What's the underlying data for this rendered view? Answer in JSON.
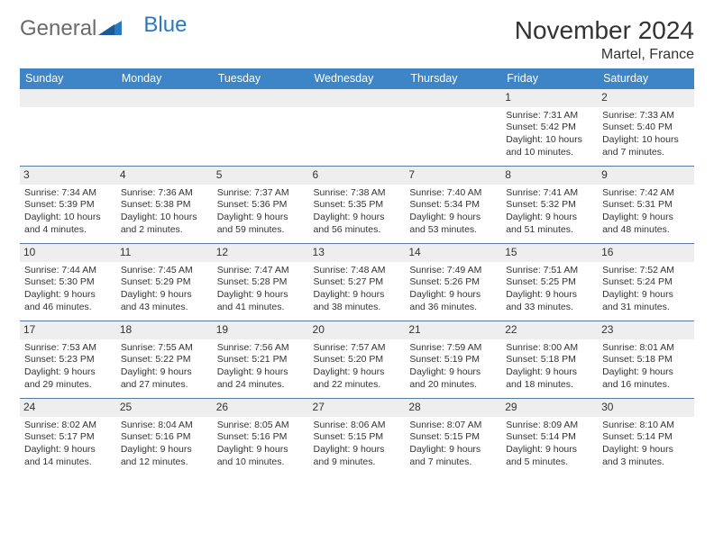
{
  "logo": {
    "text1": "General",
    "text2": "Blue"
  },
  "title": "November 2024",
  "location": "Martel, France",
  "colors": {
    "header_bg": "#3d85c6",
    "header_text": "#ffffff",
    "daynum_bg": "#eeeeee",
    "cell_border": "#5a7a9c",
    "logo_gray": "#6b6b6b",
    "logo_blue": "#2a78c2"
  },
  "day_headers": [
    "Sunday",
    "Monday",
    "Tuesday",
    "Wednesday",
    "Thursday",
    "Friday",
    "Saturday"
  ],
  "weeks": [
    [
      {
        "n": "",
        "lines": []
      },
      {
        "n": "",
        "lines": []
      },
      {
        "n": "",
        "lines": []
      },
      {
        "n": "",
        "lines": []
      },
      {
        "n": "",
        "lines": []
      },
      {
        "n": "1",
        "lines": [
          "Sunrise: 7:31 AM",
          "Sunset: 5:42 PM",
          "Daylight: 10 hours and 10 minutes."
        ]
      },
      {
        "n": "2",
        "lines": [
          "Sunrise: 7:33 AM",
          "Sunset: 5:40 PM",
          "Daylight: 10 hours and 7 minutes."
        ]
      }
    ],
    [
      {
        "n": "3",
        "lines": [
          "Sunrise: 7:34 AM",
          "Sunset: 5:39 PM",
          "Daylight: 10 hours and 4 minutes."
        ]
      },
      {
        "n": "4",
        "lines": [
          "Sunrise: 7:36 AM",
          "Sunset: 5:38 PM",
          "Daylight: 10 hours and 2 minutes."
        ]
      },
      {
        "n": "5",
        "lines": [
          "Sunrise: 7:37 AM",
          "Sunset: 5:36 PM",
          "Daylight: 9 hours and 59 minutes."
        ]
      },
      {
        "n": "6",
        "lines": [
          "Sunrise: 7:38 AM",
          "Sunset: 5:35 PM",
          "Daylight: 9 hours and 56 minutes."
        ]
      },
      {
        "n": "7",
        "lines": [
          "Sunrise: 7:40 AM",
          "Sunset: 5:34 PM",
          "Daylight: 9 hours and 53 minutes."
        ]
      },
      {
        "n": "8",
        "lines": [
          "Sunrise: 7:41 AM",
          "Sunset: 5:32 PM",
          "Daylight: 9 hours and 51 minutes."
        ]
      },
      {
        "n": "9",
        "lines": [
          "Sunrise: 7:42 AM",
          "Sunset: 5:31 PM",
          "Daylight: 9 hours and 48 minutes."
        ]
      }
    ],
    [
      {
        "n": "10",
        "lines": [
          "Sunrise: 7:44 AM",
          "Sunset: 5:30 PM",
          "Daylight: 9 hours and 46 minutes."
        ]
      },
      {
        "n": "11",
        "lines": [
          "Sunrise: 7:45 AM",
          "Sunset: 5:29 PM",
          "Daylight: 9 hours and 43 minutes."
        ]
      },
      {
        "n": "12",
        "lines": [
          "Sunrise: 7:47 AM",
          "Sunset: 5:28 PM",
          "Daylight: 9 hours and 41 minutes."
        ]
      },
      {
        "n": "13",
        "lines": [
          "Sunrise: 7:48 AM",
          "Sunset: 5:27 PM",
          "Daylight: 9 hours and 38 minutes."
        ]
      },
      {
        "n": "14",
        "lines": [
          "Sunrise: 7:49 AM",
          "Sunset: 5:26 PM",
          "Daylight: 9 hours and 36 minutes."
        ]
      },
      {
        "n": "15",
        "lines": [
          "Sunrise: 7:51 AM",
          "Sunset: 5:25 PM",
          "Daylight: 9 hours and 33 minutes."
        ]
      },
      {
        "n": "16",
        "lines": [
          "Sunrise: 7:52 AM",
          "Sunset: 5:24 PM",
          "Daylight: 9 hours and 31 minutes."
        ]
      }
    ],
    [
      {
        "n": "17",
        "lines": [
          "Sunrise: 7:53 AM",
          "Sunset: 5:23 PM",
          "Daylight: 9 hours and 29 minutes."
        ]
      },
      {
        "n": "18",
        "lines": [
          "Sunrise: 7:55 AM",
          "Sunset: 5:22 PM",
          "Daylight: 9 hours and 27 minutes."
        ]
      },
      {
        "n": "19",
        "lines": [
          "Sunrise: 7:56 AM",
          "Sunset: 5:21 PM",
          "Daylight: 9 hours and 24 minutes."
        ]
      },
      {
        "n": "20",
        "lines": [
          "Sunrise: 7:57 AM",
          "Sunset: 5:20 PM",
          "Daylight: 9 hours and 22 minutes."
        ]
      },
      {
        "n": "21",
        "lines": [
          "Sunrise: 7:59 AM",
          "Sunset: 5:19 PM",
          "Daylight: 9 hours and 20 minutes."
        ]
      },
      {
        "n": "22",
        "lines": [
          "Sunrise: 8:00 AM",
          "Sunset: 5:18 PM",
          "Daylight: 9 hours and 18 minutes."
        ]
      },
      {
        "n": "23",
        "lines": [
          "Sunrise: 8:01 AM",
          "Sunset: 5:18 PM",
          "Daylight: 9 hours and 16 minutes."
        ]
      }
    ],
    [
      {
        "n": "24",
        "lines": [
          "Sunrise: 8:02 AM",
          "Sunset: 5:17 PM",
          "Daylight: 9 hours and 14 minutes."
        ]
      },
      {
        "n": "25",
        "lines": [
          "Sunrise: 8:04 AM",
          "Sunset: 5:16 PM",
          "Daylight: 9 hours and 12 minutes."
        ]
      },
      {
        "n": "26",
        "lines": [
          "Sunrise: 8:05 AM",
          "Sunset: 5:16 PM",
          "Daylight: 9 hours and 10 minutes."
        ]
      },
      {
        "n": "27",
        "lines": [
          "Sunrise: 8:06 AM",
          "Sunset: 5:15 PM",
          "Daylight: 9 hours and 9 minutes."
        ]
      },
      {
        "n": "28",
        "lines": [
          "Sunrise: 8:07 AM",
          "Sunset: 5:15 PM",
          "Daylight: 9 hours and 7 minutes."
        ]
      },
      {
        "n": "29",
        "lines": [
          "Sunrise: 8:09 AM",
          "Sunset: 5:14 PM",
          "Daylight: 9 hours and 5 minutes."
        ]
      },
      {
        "n": "30",
        "lines": [
          "Sunrise: 8:10 AM",
          "Sunset: 5:14 PM",
          "Daylight: 9 hours and 3 minutes."
        ]
      }
    ]
  ]
}
